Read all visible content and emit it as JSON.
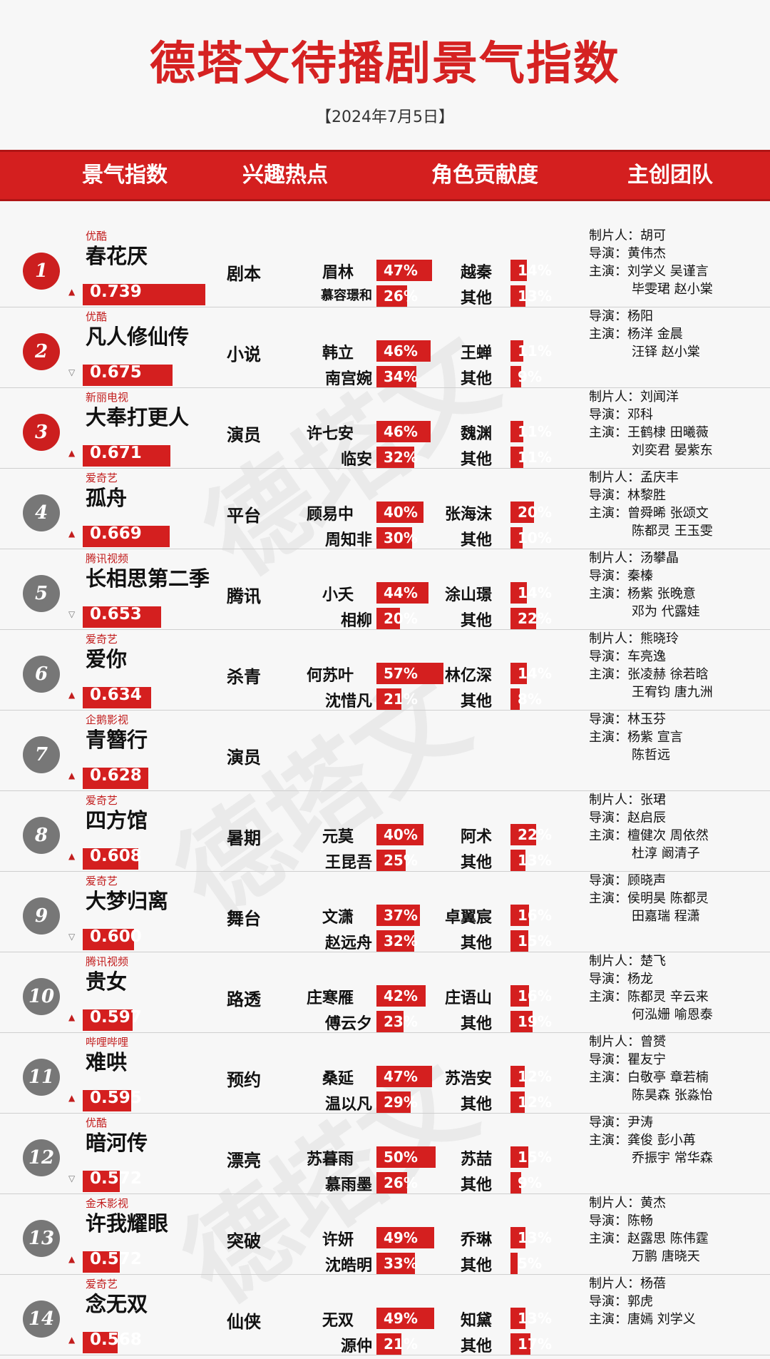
{
  "title": "德塔文待播剧景气指数",
  "date": "【2024年7月5日】",
  "headers": [
    "景气指数",
    "兴趣热点",
    "角色贡献度",
    "主创团队"
  ],
  "colors": {
    "accent": "#d41f1f",
    "badge_gray": "#777777"
  },
  "rows": [
    {
      "rank": "1",
      "badge": "red",
      "platform": "优酷",
      "name": "春花厌",
      "score": "0.739",
      "trend": "up",
      "hotspot": "剧本",
      "c1": "眉林",
      "p1": "47%",
      "c2": "越秦",
      "p2": "14%",
      "c3": "慕容璟和",
      "p3": "26%",
      "c4": "其他",
      "p4": "13%",
      "team": [
        "制片人：胡可",
        "导演：黄伟杰",
        "主演：刘学义 吴谨言",
        "毕雯珺 赵小棠"
      ]
    },
    {
      "rank": "2",
      "badge": "red",
      "platform": "优酷",
      "name": "凡人修仙传",
      "score": "0.675",
      "trend": "down",
      "hotspot": "小说",
      "c1": "韩立",
      "p1": "46%",
      "c2": "王蝉",
      "p2": "11%",
      "c3": "南宫婉",
      "p3": "34%",
      "c4": "其他",
      "p4": "9%",
      "team": [
        "导演：杨阳",
        "主演：杨洋 金晨",
        "汪铎 赵小棠"
      ]
    },
    {
      "rank": "3",
      "badge": "red",
      "platform": "新丽电视",
      "name": "大奉打更人",
      "score": "0.671",
      "trend": "up",
      "hotspot": "演员",
      "c1": "许七安",
      "p1": "46%",
      "c2": "魏渊",
      "p2": "11%",
      "c3": "临安",
      "p3": "32%",
      "c4": "其他",
      "p4": "11%",
      "team": [
        "制片人：刘闻洋",
        "导演：邓科",
        "主演：王鹤棣 田曦薇",
        "刘奕君 晏紫东"
      ]
    },
    {
      "rank": "4",
      "badge": "gray",
      "platform": "爱奇艺",
      "name": "孤舟",
      "score": "0.669",
      "trend": "up",
      "hotspot": "平台",
      "c1": "顾易中",
      "p1": "40%",
      "c2": "张海沫",
      "p2": "20%",
      "c3": "周知非",
      "p3": "30%",
      "c4": "其他",
      "p4": "10%",
      "team": [
        "制片人：孟庆丰",
        "导演：林黎胜",
        "主演：曾舜晞 张颂文",
        "陈都灵 王玉雯"
      ]
    },
    {
      "rank": "5",
      "badge": "gray",
      "platform": "腾讯视频",
      "name": "长相思第二季",
      "score": "0.653",
      "trend": "down",
      "hotspot": "腾讯",
      "c1": "小夭",
      "p1": "44%",
      "c2": "涂山璟",
      "p2": "14%",
      "c3": "相柳",
      "p3": "20%",
      "c4": "其他",
      "p4": "22%",
      "team": [
        "制片人：汤攀晶",
        "导演：秦榛",
        "主演：杨紫 张晚意",
        "邓为 代露娃"
      ]
    },
    {
      "rank": "6",
      "badge": "gray",
      "platform": "爱奇艺",
      "name": "爱你",
      "score": "0.634",
      "trend": "up",
      "hotspot": "杀青",
      "c1": "何苏叶",
      "p1": "57%",
      "c2": "林亿深",
      "p2": "14%",
      "c3": "沈惜凡",
      "p3": "21%",
      "c4": "其他",
      "p4": "8%",
      "team": [
        "制片人：熊晓玲",
        "导演：车亮逸",
        "主演：张凌赫 徐若晗",
        "王宥钧 唐九洲"
      ]
    },
    {
      "rank": "7",
      "badge": "gray",
      "platform": "企鹅影视",
      "name": "青簪行",
      "score": "0.628",
      "trend": "up",
      "hotspot": "演员",
      "c1": "",
      "p1": "",
      "c2": "",
      "p2": "",
      "c3": "",
      "p3": "",
      "c4": "",
      "p4": "",
      "team": [
        "导演：林玉芬",
        "主演：杨紫 宣言",
        "陈哲远"
      ]
    },
    {
      "rank": "8",
      "badge": "gray",
      "platform": "爱奇艺",
      "name": "四方馆",
      "score": "0.608",
      "trend": "up",
      "hotspot": "暑期",
      "c1": "元莫",
      "p1": "40%",
      "c2": "阿术",
      "p2": "22%",
      "c3": "王昆吾",
      "p3": "25%",
      "c4": "其他",
      "p4": "13%",
      "team": [
        "制片人：张珺",
        "导演：赵启辰",
        "主演：檀健次 周依然",
        "杜淳 阚清子"
      ]
    },
    {
      "rank": "9",
      "badge": "gray",
      "platform": "爱奇艺",
      "name": "大梦归离",
      "score": "0.600",
      "trend": "down",
      "hotspot": "舞台",
      "c1": "文潇",
      "p1": "37%",
      "c2": "卓翼宸",
      "p2": "16%",
      "c3": "赵远舟",
      "p3": "32%",
      "c4": "其他",
      "p4": "15%",
      "team": [
        "导演：顾晓声",
        "主演：侯明昊 陈都灵",
        "田嘉瑞 程潇"
      ]
    },
    {
      "rank": "10",
      "badge": "gray",
      "platform": "腾讯视频",
      "name": "贵女",
      "score": "0.597",
      "trend": "up",
      "hotspot": "路透",
      "c1": "庄寒雁",
      "p1": "42%",
      "c2": "庄语山",
      "p2": "16%",
      "c3": "傅云夕",
      "p3": "23%",
      "c4": "其他",
      "p4": "19%",
      "team": [
        "制片人：楚飞",
        "导演：杨龙",
        "主演：陈都灵 辛云来",
        "何泓姗 喻恩泰"
      ]
    },
    {
      "rank": "11",
      "badge": "gray",
      "platform": "哔哩哔哩",
      "name": "难哄",
      "score": "0.595",
      "trend": "up",
      "hotspot": "预约",
      "c1": "桑延",
      "p1": "47%",
      "c2": "苏浩安",
      "p2": "12%",
      "c3": "温以凡",
      "p3": "29%",
      "c4": "其他",
      "p4": "12%",
      "team": [
        "制片人：曾赟",
        "导演：瞿友宁",
        "主演：白敬亭 章若楠",
        "陈昊森 张淼怡"
      ]
    },
    {
      "rank": "12",
      "badge": "gray",
      "platform": "优酷",
      "name": "暗河传",
      "score": "0.572",
      "trend": "down",
      "hotspot": "漂亮",
      "c1": "苏暮雨",
      "p1": "50%",
      "c2": "苏喆",
      "p2": "15%",
      "c3": "慕雨墨",
      "p3": "26%",
      "c4": "其他",
      "p4": "9%",
      "team": [
        "导演：尹涛",
        "主演：龚俊 彭小苒",
        "乔振宇 常华森"
      ]
    },
    {
      "rank": "13",
      "badge": "gray",
      "platform": "金禾影视",
      "name": "许我耀眼",
      "score": "0.572",
      "trend": "up",
      "hotspot": "突破",
      "c1": "许妍",
      "p1": "49%",
      "c2": "乔琳",
      "p2": "13%",
      "c3": "沈皓明",
      "p3": "33%",
      "c4": "其他",
      "p4": "5%",
      "team": [
        "制片人：黄杰",
        "导演：陈畅",
        "主演：赵露思 陈伟霆",
        "万鹏 唐晓天"
      ]
    },
    {
      "rank": "14",
      "badge": "gray",
      "platform": "爱奇艺",
      "name": "念无双",
      "score": "0.568",
      "trend": "up",
      "hotspot": "仙侠",
      "c1": "无双",
      "p1": "49%",
      "c2": "知黛",
      "p2": "13%",
      "c3": "源仲",
      "p3": "21%",
      "c4": "其他",
      "p4": "17%",
      "team": [
        "制片人：杨蓓",
        "导演：郭虎",
        "主演：唐嫣 刘学义"
      ]
    }
  ]
}
